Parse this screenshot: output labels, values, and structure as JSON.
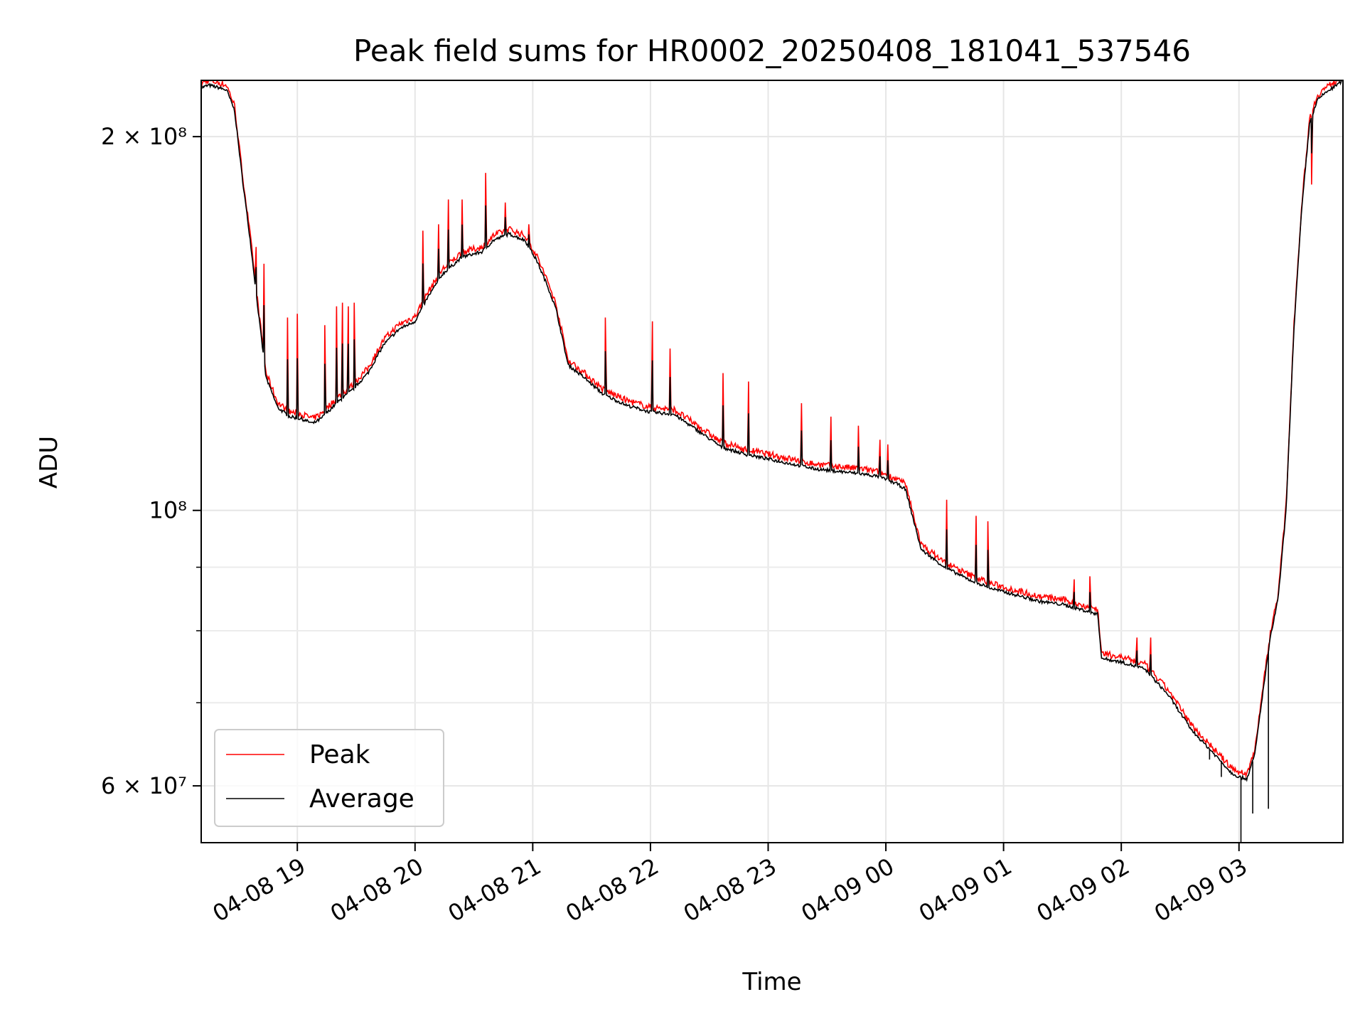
{
  "chart_data": {
    "type": "line",
    "title": "Peak field sums for HR0002_20250408_181041_537546",
    "xlabel": "Time",
    "ylabel": "ADU",
    "x_axis": {
      "type": "datetime",
      "range": [
        "2025-04-08 18:11",
        "2025-04-09 03:53"
      ],
      "ticks": [
        {
          "value": "2025-04-08 19:00",
          "label": "04-08 19"
        },
        {
          "value": "2025-04-08 20:00",
          "label": "04-08 20"
        },
        {
          "value": "2025-04-08 21:00",
          "label": "04-08 21"
        },
        {
          "value": "2025-04-08 22:00",
          "label": "04-08 22"
        },
        {
          "value": "2025-04-08 23:00",
          "label": "04-08 23"
        },
        {
          "value": "2025-04-09 00:00",
          "label": "04-09 00"
        },
        {
          "value": "2025-04-09 01:00",
          "label": "04-09 01"
        },
        {
          "value": "2025-04-09 02:00",
          "label": "04-09 02"
        },
        {
          "value": "2025-04-09 03:00",
          "label": "04-09 03"
        }
      ]
    },
    "y_axis": {
      "scale": "log",
      "range": [
        54000000,
        222000000
      ],
      "major_ticks": [
        {
          "value": 200000000,
          "label": "2 × 10⁸"
        },
        {
          "value": 100000000,
          "label": "10⁸"
        },
        {
          "value": 60000000,
          "label": "6 × 10⁷"
        }
      ],
      "minor_ticks": [
        90000000,
        80000000,
        70000000
      ]
    },
    "grid": true,
    "legend_position": "lower-left",
    "series": [
      {
        "name": "Average",
        "color": "#000000",
        "x": [
          "2025-04-08 18:11",
          "2025-04-08 18:15",
          "2025-04-08 18:20",
          "2025-04-08 18:24",
          "2025-04-08 18:28",
          "2025-04-08 18:32",
          "2025-04-08 18:36",
          "2025-04-08 18:40",
          "2025-04-08 18:44",
          "2025-04-08 18:50",
          "2025-04-08 18:56",
          "2025-04-08 19:02",
          "2025-04-08 19:08",
          "2025-04-08 19:12",
          "2025-04-08 19:20",
          "2025-04-08 19:28",
          "2025-04-08 19:36",
          "2025-04-08 19:44",
          "2025-04-08 19:52",
          "2025-04-08 20:00",
          "2025-04-08 20:06",
          "2025-04-08 20:14",
          "2025-04-08 20:24",
          "2025-04-08 20:34",
          "2025-04-08 20:40",
          "2025-04-08 20:48",
          "2025-04-08 20:56",
          "2025-04-08 21:02",
          "2025-04-08 21:08",
          "2025-04-08 21:12",
          "2025-04-08 21:18",
          "2025-04-08 21:26",
          "2025-04-08 21:36",
          "2025-04-08 21:48",
          "2025-04-08 22:00",
          "2025-04-08 22:12",
          "2025-04-08 22:24",
          "2025-04-08 22:36",
          "2025-04-08 22:48",
          "2025-04-08 23:00",
          "2025-04-08 23:12",
          "2025-04-08 23:24",
          "2025-04-08 23:36",
          "2025-04-08 23:48",
          "2025-04-08 23:56",
          "2025-04-09 00:06",
          "2025-04-09 00:10",
          "2025-04-09 00:18",
          "2025-04-09 00:30",
          "2025-04-09 00:42",
          "2025-04-09 00:54",
          "2025-04-09 01:06",
          "2025-04-09 01:18",
          "2025-04-09 01:30",
          "2025-04-09 01:42",
          "2025-04-09 01:48",
          "2025-04-09 01:50",
          "2025-04-09 02:00",
          "2025-04-09 02:12",
          "2025-04-09 02:24",
          "2025-04-09 02:36",
          "2025-04-09 02:48",
          "2025-04-09 02:56",
          "2025-04-09 03:00",
          "2025-04-09 03:04",
          "2025-04-09 03:08",
          "2025-04-09 03:12",
          "2025-04-09 03:16",
          "2025-04-09 03:20",
          "2025-04-09 03:24",
          "2025-04-09 03:28",
          "2025-04-09 03:32",
          "2025-04-09 03:36",
          "2025-04-09 03:40",
          "2025-04-09 03:44",
          "2025-04-09 03:48",
          "2025-04-09 03:53"
        ],
        "y": [
          219000000,
          220000000,
          219000000,
          218000000,
          210000000,
          185000000,
          165000000,
          145000000,
          128000000,
          121000000,
          119000000,
          118500000,
          117500000,
          118500000,
          122000000,
          125000000,
          129000000,
          136000000,
          140000000,
          142000000,
          148000000,
          155000000,
          160000000,
          161500000,
          165000000,
          167000000,
          165000000,
          159000000,
          151000000,
          145000000,
          131000000,
          128000000,
          124000000,
          121500000,
          120000000,
          119500000,
          116000000,
          112500000,
          111000000,
          110000000,
          109000000,
          108000000,
          107500000,
          107000000,
          106500000,
          105000000,
          104000000,
          93000000,
          90000000,
          88000000,
          86500000,
          85500000,
          84500000,
          84000000,
          83000000,
          82500000,
          76000000,
          75500000,
          74500000,
          71000000,
          66500000,
          63500000,
          61500000,
          61000000,
          60800000,
          63500000,
          71000000,
          79000000,
          85000000,
          100000000,
          140000000,
          175000000,
          205000000,
          214000000,
          217000000,
          219000000,
          222000000
        ]
      },
      {
        "name": "Peak",
        "color": "#ff0000",
        "note_values": "Peak follows Average with upward spikes at the listed times",
        "spikes": [
          {
            "x": "2025-04-08 18:39",
            "y": 163000000
          },
          {
            "x": "2025-04-08 18:43",
            "y": 158000000
          },
          {
            "x": "2025-04-08 18:55",
            "y": 143000000
          },
          {
            "x": "2025-04-08 19:00",
            "y": 144000000
          },
          {
            "x": "2025-04-08 19:14",
            "y": 141000000
          },
          {
            "x": "2025-04-08 19:20",
            "y": 146000000
          },
          {
            "x": "2025-04-08 19:23",
            "y": 147000000
          },
          {
            "x": "2025-04-08 19:26",
            "y": 146000000
          },
          {
            "x": "2025-04-08 19:29",
            "y": 147000000
          },
          {
            "x": "2025-04-08 20:04",
            "y": 168000000
          },
          {
            "x": "2025-04-08 20:12",
            "y": 170000000
          },
          {
            "x": "2025-04-08 20:17",
            "y": 178000000
          },
          {
            "x": "2025-04-08 20:24",
            "y": 178000000
          },
          {
            "x": "2025-04-08 20:36",
            "y": 187000000
          },
          {
            "x": "2025-04-08 20:46",
            "y": 177000000
          },
          {
            "x": "2025-04-08 20:58",
            "y": 170000000
          },
          {
            "x": "2025-04-08 21:37",
            "y": 143000000
          },
          {
            "x": "2025-04-08 22:01",
            "y": 142000000
          },
          {
            "x": "2025-04-08 22:10",
            "y": 135000000
          },
          {
            "x": "2025-04-08 22:37",
            "y": 129000000
          },
          {
            "x": "2025-04-08 22:50",
            "y": 127000000
          },
          {
            "x": "2025-04-08 23:17",
            "y": 122000000
          },
          {
            "x": "2025-04-08 23:32",
            "y": 119000000
          },
          {
            "x": "2025-04-08 23:46",
            "y": 117000000
          },
          {
            "x": "2025-04-08 23:57",
            "y": 114000000
          },
          {
            "x": "2025-04-09 00:01",
            "y": 113000000
          },
          {
            "x": "2025-04-09 00:31",
            "y": 102000000
          },
          {
            "x": "2025-04-09 00:46",
            "y": 99000000
          },
          {
            "x": "2025-04-09 00:52",
            "y": 98000000
          },
          {
            "x": "2025-04-09 01:36",
            "y": 88000000
          },
          {
            "x": "2025-04-09 01:44",
            "y": 88500000
          },
          {
            "x": "2025-04-09 02:08",
            "y": 79000000
          },
          {
            "x": "2025-04-09 02:15",
            "y": 79000000
          },
          {
            "x": "2025-04-09 03:37",
            "y": 183000000
          }
        ]
      }
    ],
    "legend": [
      {
        "label": "Peak",
        "color": "#ff0000"
      },
      {
        "label": "Average",
        "color": "#000000"
      }
    ]
  }
}
